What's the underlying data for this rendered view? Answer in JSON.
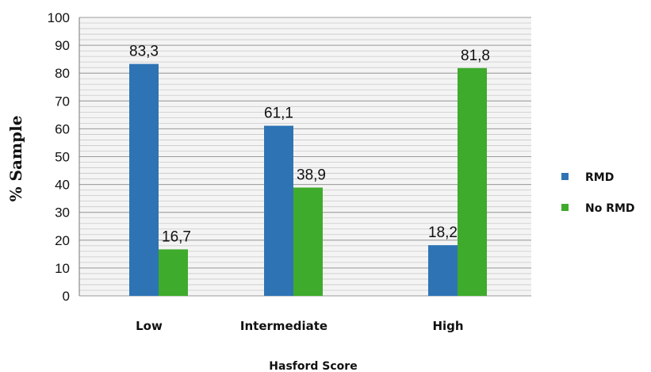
{
  "chart_data": {
    "type": "bar",
    "categories": [
      "Low",
      "Intermediate",
      "High"
    ],
    "series": [
      {
        "name": "RMD",
        "values": [
          83.3,
          61.1,
          18.2
        ],
        "labels": [
          "83,3",
          "61,1",
          "18,2"
        ],
        "color": "#2e74b5"
      },
      {
        "name": "No RMD",
        "values": [
          16.7,
          38.9,
          81.8
        ],
        "labels": [
          "16,7",
          "38,9",
          "81,8"
        ],
        "color": "#3fab2c"
      }
    ],
    "xlabel": "Hasford Score",
    "ylabel": "% Sample",
    "ylim": [
      0,
      100
    ],
    "yticks": [
      0,
      10,
      20,
      30,
      40,
      50,
      60,
      70,
      80,
      90,
      100
    ],
    "grid": true,
    "legend_position": "right"
  }
}
